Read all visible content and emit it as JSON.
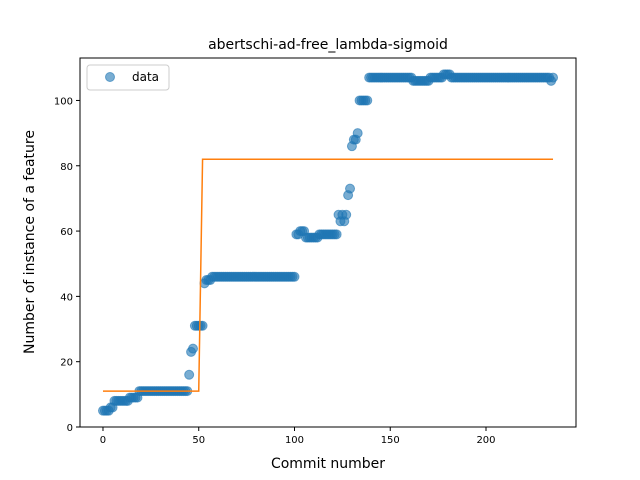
{
  "chart_data": {
    "type": "scatter",
    "title": "abertschi-ad-free_lambda-sigmoid",
    "xlabel": "Commit number",
    "ylabel": "Number of instance of a feature",
    "xlim": [
      -12,
      247
    ],
    "ylim": [
      0,
      113
    ],
    "xticks": [
      0,
      50,
      100,
      150,
      200
    ],
    "yticks": [
      0,
      20,
      40,
      60,
      80,
      100
    ],
    "grid": false,
    "legend": {
      "placement": "top-left",
      "entries": [
        "data"
      ]
    },
    "colors": {
      "data": "#1f77b4",
      "fit": "#ff7f0e"
    },
    "series": [
      {
        "name": "data",
        "kind": "scatter",
        "segments": [
          [
            0,
            1,
            5
          ],
          [
            2,
            3,
            5
          ],
          [
            4,
            5,
            6
          ],
          [
            6,
            13,
            8
          ],
          [
            14,
            15,
            9
          ],
          [
            16,
            18,
            9
          ],
          [
            19,
            44,
            11
          ],
          [
            45,
            45,
            16
          ],
          [
            46,
            46,
            23
          ],
          [
            47,
            47,
            24
          ],
          [
            48,
            52,
            31
          ],
          [
            53,
            53,
            44
          ],
          [
            54,
            56,
            45
          ],
          [
            57,
            100,
            46
          ],
          [
            101,
            102,
            59
          ],
          [
            103,
            105,
            60
          ],
          [
            106,
            112,
            58
          ],
          [
            113,
            122,
            59
          ],
          [
            123,
            123,
            65
          ],
          [
            124,
            124,
            63
          ],
          [
            125,
            125,
            65
          ],
          [
            126,
            126,
            63
          ],
          [
            127,
            127,
            65
          ],
          [
            128,
            128,
            71
          ],
          [
            129,
            129,
            73
          ],
          [
            130,
            130,
            86
          ],
          [
            131,
            132,
            88
          ],
          [
            133,
            133,
            90
          ],
          [
            134,
            138,
            100
          ],
          [
            139,
            161,
            107
          ],
          [
            162,
            170,
            106
          ],
          [
            171,
            177,
            107
          ],
          [
            178,
            181,
            108
          ],
          [
            182,
            233,
            107
          ],
          [
            234,
            234,
            106
          ],
          [
            235,
            235,
            107
          ]
        ]
      },
      {
        "name": "",
        "kind": "line",
        "x": [
          0,
          50,
          52,
          235
        ],
        "y": [
          11,
          11,
          82,
          82
        ]
      }
    ]
  }
}
